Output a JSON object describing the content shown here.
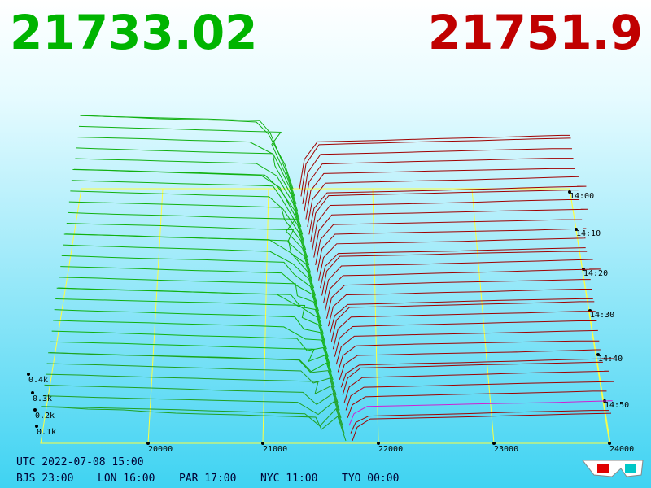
{
  "header": {
    "bid": "21733.02",
    "ask": "21751.9"
  },
  "axes": {
    "price_ticks": [
      "20000",
      "21000",
      "22000",
      "23000",
      "24000"
    ],
    "time_ticks": [
      "14:00",
      "14:10",
      "14:20",
      "14:30",
      "14:40",
      "14:50"
    ],
    "volume_ticks": [
      "0.4k",
      "0.3k",
      "0.2k",
      "0.1k"
    ]
  },
  "footer": {
    "utc": "UTC 2022-07-08 15:00",
    "zones": [
      "BJS 23:00",
      "LON 16:00",
      "PAR 17:00",
      "NYC 11:00",
      "TYO 00:00"
    ]
  }
}
